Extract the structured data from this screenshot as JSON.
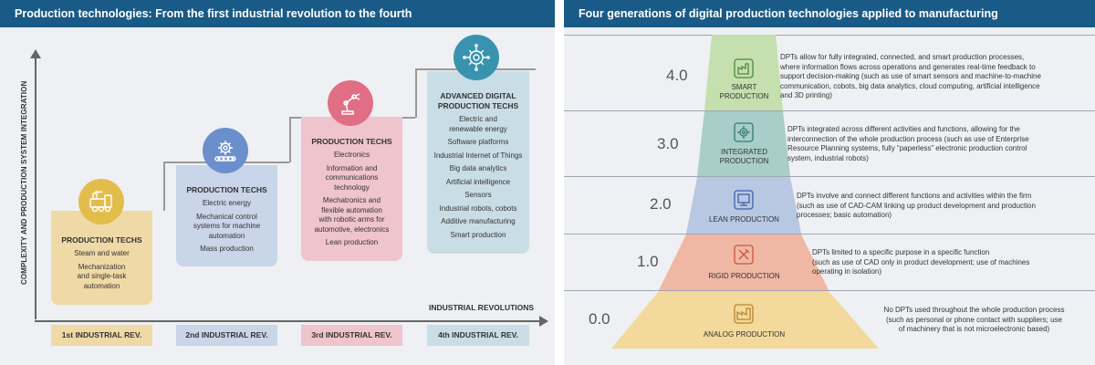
{
  "left": {
    "title": "Production technologies: From the first industrial revolution to the fourth",
    "y_axis_label": "COMPLEXITY AND PRODUCTION SYSTEM INTEGRATION",
    "x_axis_label": "INDUSTRIAL REVOLUTIONS",
    "columns": [
      {
        "icon": "steam-train-icon",
        "title": "PRODUCTION TECHS",
        "items": [
          "Steam and water",
          "Mechanization\nand single-task\nautomation"
        ],
        "revolution": "1st INDUSTRIAL REV.",
        "color": "#efd9a6"
      },
      {
        "icon": "gear-conveyor-icon",
        "title": "PRODUCTION TECHS",
        "items": [
          "Electric energy",
          "Mechanical control\nsystems for machine\nautomation",
          "Mass production"
        ],
        "revolution": "2nd INDUSTRIAL REV.",
        "color": "#c9d5e8"
      },
      {
        "icon": "robotic-arm-icon",
        "title": "PRODUCTION TECHS",
        "items": [
          "Electronics",
          "Information and\ncommunications\ntechnology",
          "Mechatronics and\nflexible automation\nwith robotic arms for\nautomotive, electronics",
          "Lean production"
        ],
        "revolution": "3rd INDUSTRIAL REV.",
        "color": "#efc4cd"
      },
      {
        "icon": "digital-gear-icon",
        "title": "ADVANCED DIGITAL\nPRODUCTION TECHS",
        "items": [
          "Electric and\nrenewable energy",
          "Software platforms",
          "Industrial Internet of Things",
          "Big data analytics",
          "Artificial intelligence",
          "Sensors",
          "Industrial robots, cobots",
          "Additive manufacturing",
          "Smart production"
        ],
        "revolution": "4th INDUSTRIAL REV.",
        "color": "#c9dde6"
      }
    ]
  },
  "right": {
    "title": "Four generations of digital production technologies applied to manufacturing",
    "levels": [
      {
        "level": "4.0",
        "name": "SMART\nPRODUCTION",
        "icon": "smart-factory-icon",
        "color": "#c5dfae",
        "description": "DPTs allow for fully integrated, connected, and smart production processes,\nwhere information flows across operations and generates real-time feedback to\nsupport decision-making (such as use of smart sensors and machine-to-machine\ncommunication, cobots, big data analytics, cloud computing, artificial intelligence\nand 3D printing)"
      },
      {
        "level": "3.0",
        "name": "INTEGRATED\nPRODUCTION",
        "icon": "integrated-gear-icon",
        "color": "#a9cdc9",
        "description": "DPTs integrated across different activities and functions, allowing for the\ninterconnection of the whole production process (such as use of Enterprise\nResource Planning systems, fully “paperless” electronic production control\nsystem, industrial robots)"
      },
      {
        "level": "2.0",
        "name": "LEAN PRODUCTION",
        "icon": "lean-monitor-icon",
        "color": "#b8c8e3",
        "description": "DPTs involve and connect different functions and activities within the firm\n(such as use of CAD-CAM linking up product development and production\nprocesses; basic automation)"
      },
      {
        "level": "1.0",
        "name": "RIGID PRODUCTION",
        "icon": "rigid-tools-icon",
        "color": "#f0b7a4",
        "description": "DPTs limited to a specific purpose in a specific function\n(such as use of CAD only in product development; use of machines\noperating in isolation)"
      },
      {
        "level": "0.0",
        "name": "ANALOG PRODUCTION",
        "icon": "analog-factory-icon",
        "color": "#f3d99c",
        "description": "No DPTs used throughout the whole production process\n(such as personal or phone contact with suppliers; use\nof machinery that is not microelectronic based)"
      }
    ]
  }
}
